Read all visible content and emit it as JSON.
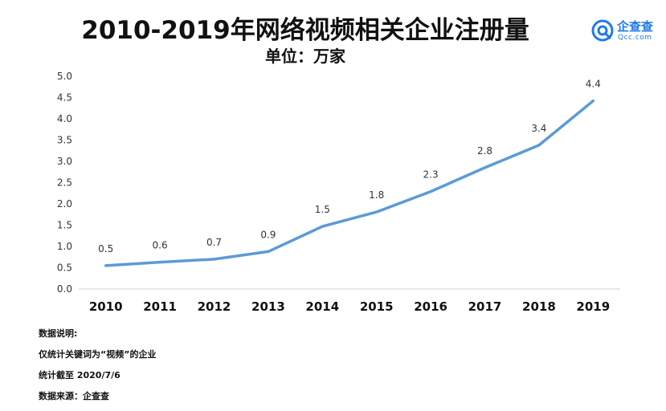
{
  "header": {
    "title": "2010-2019年网络视频相关企业注册量",
    "subtitle": "单位：万家"
  },
  "logo": {
    "name": "企查查",
    "sub": "Qcc.com"
  },
  "notes": [
    "数据说明:",
    "仅统计关键词为“视频”的企业",
    "统计截至 2020/7/6",
    "数据来源：企查查"
  ],
  "colors": {
    "line": "#5b9bd5",
    "axis": "#d0d0d0",
    "logo": "#1f7be5"
  },
  "chart_data": {
    "type": "line",
    "categories": [
      "2010",
      "2011",
      "2012",
      "2013",
      "2014",
      "2015",
      "2016",
      "2017",
      "2018",
      "2019"
    ],
    "values": [
      0.55,
      0.63,
      0.7,
      0.88,
      1.47,
      1.81,
      2.29,
      2.85,
      3.38,
      4.42
    ],
    "data_labels": [
      "0.5",
      "0.6",
      "0.7",
      "0.9",
      "1.5",
      "1.8",
      "2.3",
      "2.8",
      "3.4",
      "4.4"
    ],
    "y_ticks": [
      "0.0",
      "0.5",
      "1.0",
      "1.5",
      "2.0",
      "2.5",
      "3.0",
      "3.5",
      "4.0",
      "4.5",
      "5.0"
    ],
    "ylim": [
      0,
      5
    ],
    "grid": false,
    "title": "2010-2019年网络视频相关企业注册量",
    "ylabel": "单位：万家"
  }
}
